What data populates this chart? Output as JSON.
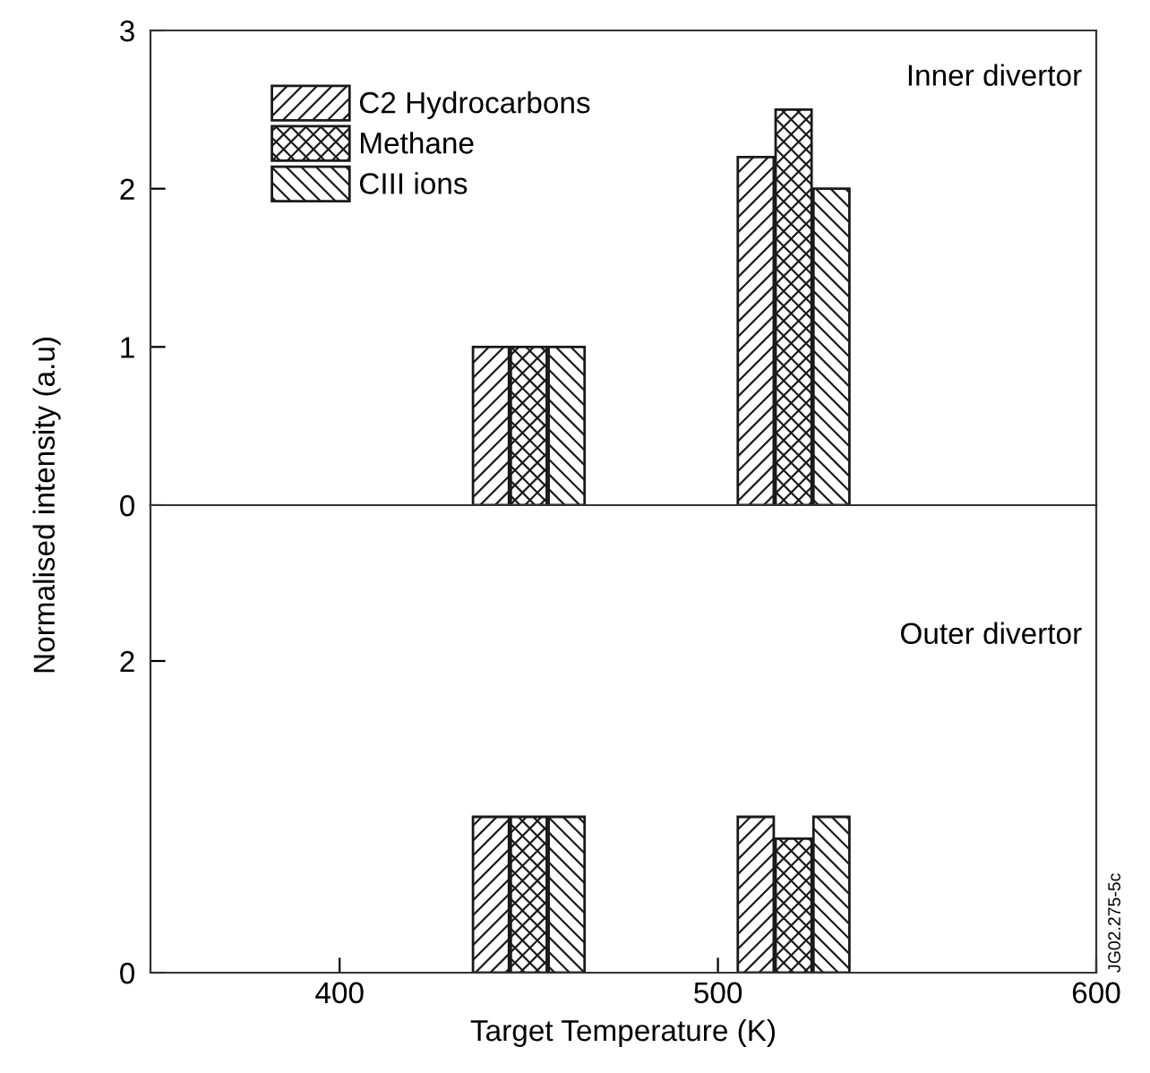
{
  "chart_data": [
    {
      "type": "bar",
      "ylabel": "Normalised intensity (a.u)",
      "xlim": [
        350,
        600
      ],
      "ylim": [
        0,
        3
      ],
      "yticks": [
        0,
        1,
        2,
        3
      ],
      "tick_labels": "y",
      "legend": "top left",
      "grid": false,
      "annotations": [
        "Inner divertor"
      ],
      "series": [
        {
          "name": "C2 Hydrocarbons",
          "color": "#1a1a1a",
          "x": [
            440,
            510
          ],
          "values": [
            1.0,
            2.2
          ]
        },
        {
          "name": "Methane",
          "color": "#1a1a1a",
          "x": [
            450,
            520
          ],
          "values": [
            1.0,
            2.5
          ]
        },
        {
          "name": "CIII ions",
          "color": "#1a1a1a",
          "x": [
            460,
            530
          ],
          "values": [
            1.0,
            2.0
          ]
        }
      ]
    },
    {
      "type": "bar",
      "xlabel": "Target Temperature (K)",
      "xlim": [
        350,
        600
      ],
      "xticks": [
        400,
        500,
        600
      ],
      "ylim": [
        0,
        3
      ],
      "yticks": [
        0,
        2
      ],
      "legend": false,
      "grid": false,
      "annotations": [
        "Outer divertor",
        "JG02.275-5c"
      ],
      "series": [
        {
          "color": "#1a1a1a",
          "x": [
            440,
            510
          ],
          "values": [
            1.0,
            1.0
          ]
        },
        {
          "color": "#1a1a1a",
          "x": [
            450,
            520
          ],
          "values": [
            1.0,
            0.86
          ]
        },
        {
          "color": "#1a1a1a",
          "x": [
            460,
            530
          ],
          "values": [
            1.0,
            1.0
          ]
        }
      ]
    }
  ]
}
